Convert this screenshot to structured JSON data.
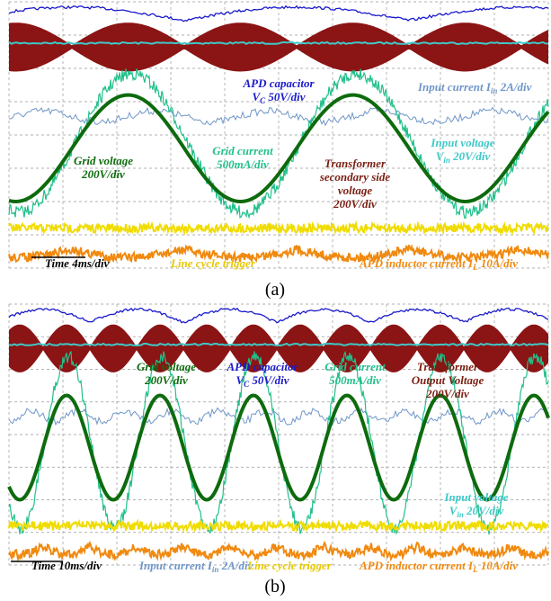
{
  "panels": [
    {
      "caption": "(a)",
      "labels": [
        {
          "color": "#1a1acc",
          "lines": [
            "APD capacitor",
            {
              "text": "V",
              "sub": "C",
              "after": " 50V/div"
            }
          ]
        },
        {
          "color": "#6f96c8",
          "lines": [
            {
              "text": "Input current I",
              "sub": "in",
              "after": " 2A/div"
            }
          ]
        },
        {
          "color": "#3fc8c8",
          "lines": [
            "Input voltage",
            {
              "text": "V",
              "sub": "in",
              "after": " 20V/div"
            }
          ]
        },
        {
          "color": "#0d6b0d",
          "lines": [
            "Grid voltage",
            "200V/div"
          ]
        },
        {
          "color": "#22c08a",
          "lines": [
            "Grid current",
            "500mA/div"
          ]
        },
        {
          "color": "#7a1e12",
          "lines": [
            "Transformer",
            "secondary side",
            "voltage",
            "200V/div"
          ]
        },
        {
          "color": "#000000",
          "lines": [
            "Time 4ms/div"
          ]
        },
        {
          "color": "#e8c800",
          "lines": [
            "Line cycle trigger"
          ]
        },
        {
          "color": "#f08a10",
          "lines": [
            {
              "text": "APD inductor current I",
              "sub": "L",
              "after": " 10A/div"
            }
          ]
        }
      ]
    },
    {
      "caption": "(b)",
      "labels": [
        {
          "color": "#0d6b0d",
          "lines": [
            "Grid voltage",
            "200V/div"
          ]
        },
        {
          "color": "#1a1acc",
          "lines": [
            "APD capacitor",
            {
              "text": "V",
              "sub": "C",
              "after": " 50V/div"
            }
          ]
        },
        {
          "color": "#22c08a",
          "lines": [
            "Grid current",
            "500mA/div"
          ]
        },
        {
          "color": "#7a1e12",
          "lines": [
            "Transformer",
            "Output Voltage",
            "200V/div"
          ]
        },
        {
          "color": "#3fc8c8",
          "lines": [
            "Input voltage",
            {
              "text": "V",
              "sub": "in",
              "after": " 20V/div"
            }
          ]
        },
        {
          "color": "#000000",
          "lines": [
            "Time 10ms/div"
          ]
        },
        {
          "color": "#6f96c8",
          "lines": [
            {
              "text": "Input current I",
              "sub": "in",
              "after": " 2A/div"
            }
          ]
        },
        {
          "color": "#e8c800",
          "lines": [
            "Line cycle trigger"
          ]
        },
        {
          "color": "#f08a10",
          "lines": [
            {
              "text": "APD inductor current I",
              "sub": "L",
              "after": " 10A/div"
            }
          ]
        }
      ]
    }
  ]
}
